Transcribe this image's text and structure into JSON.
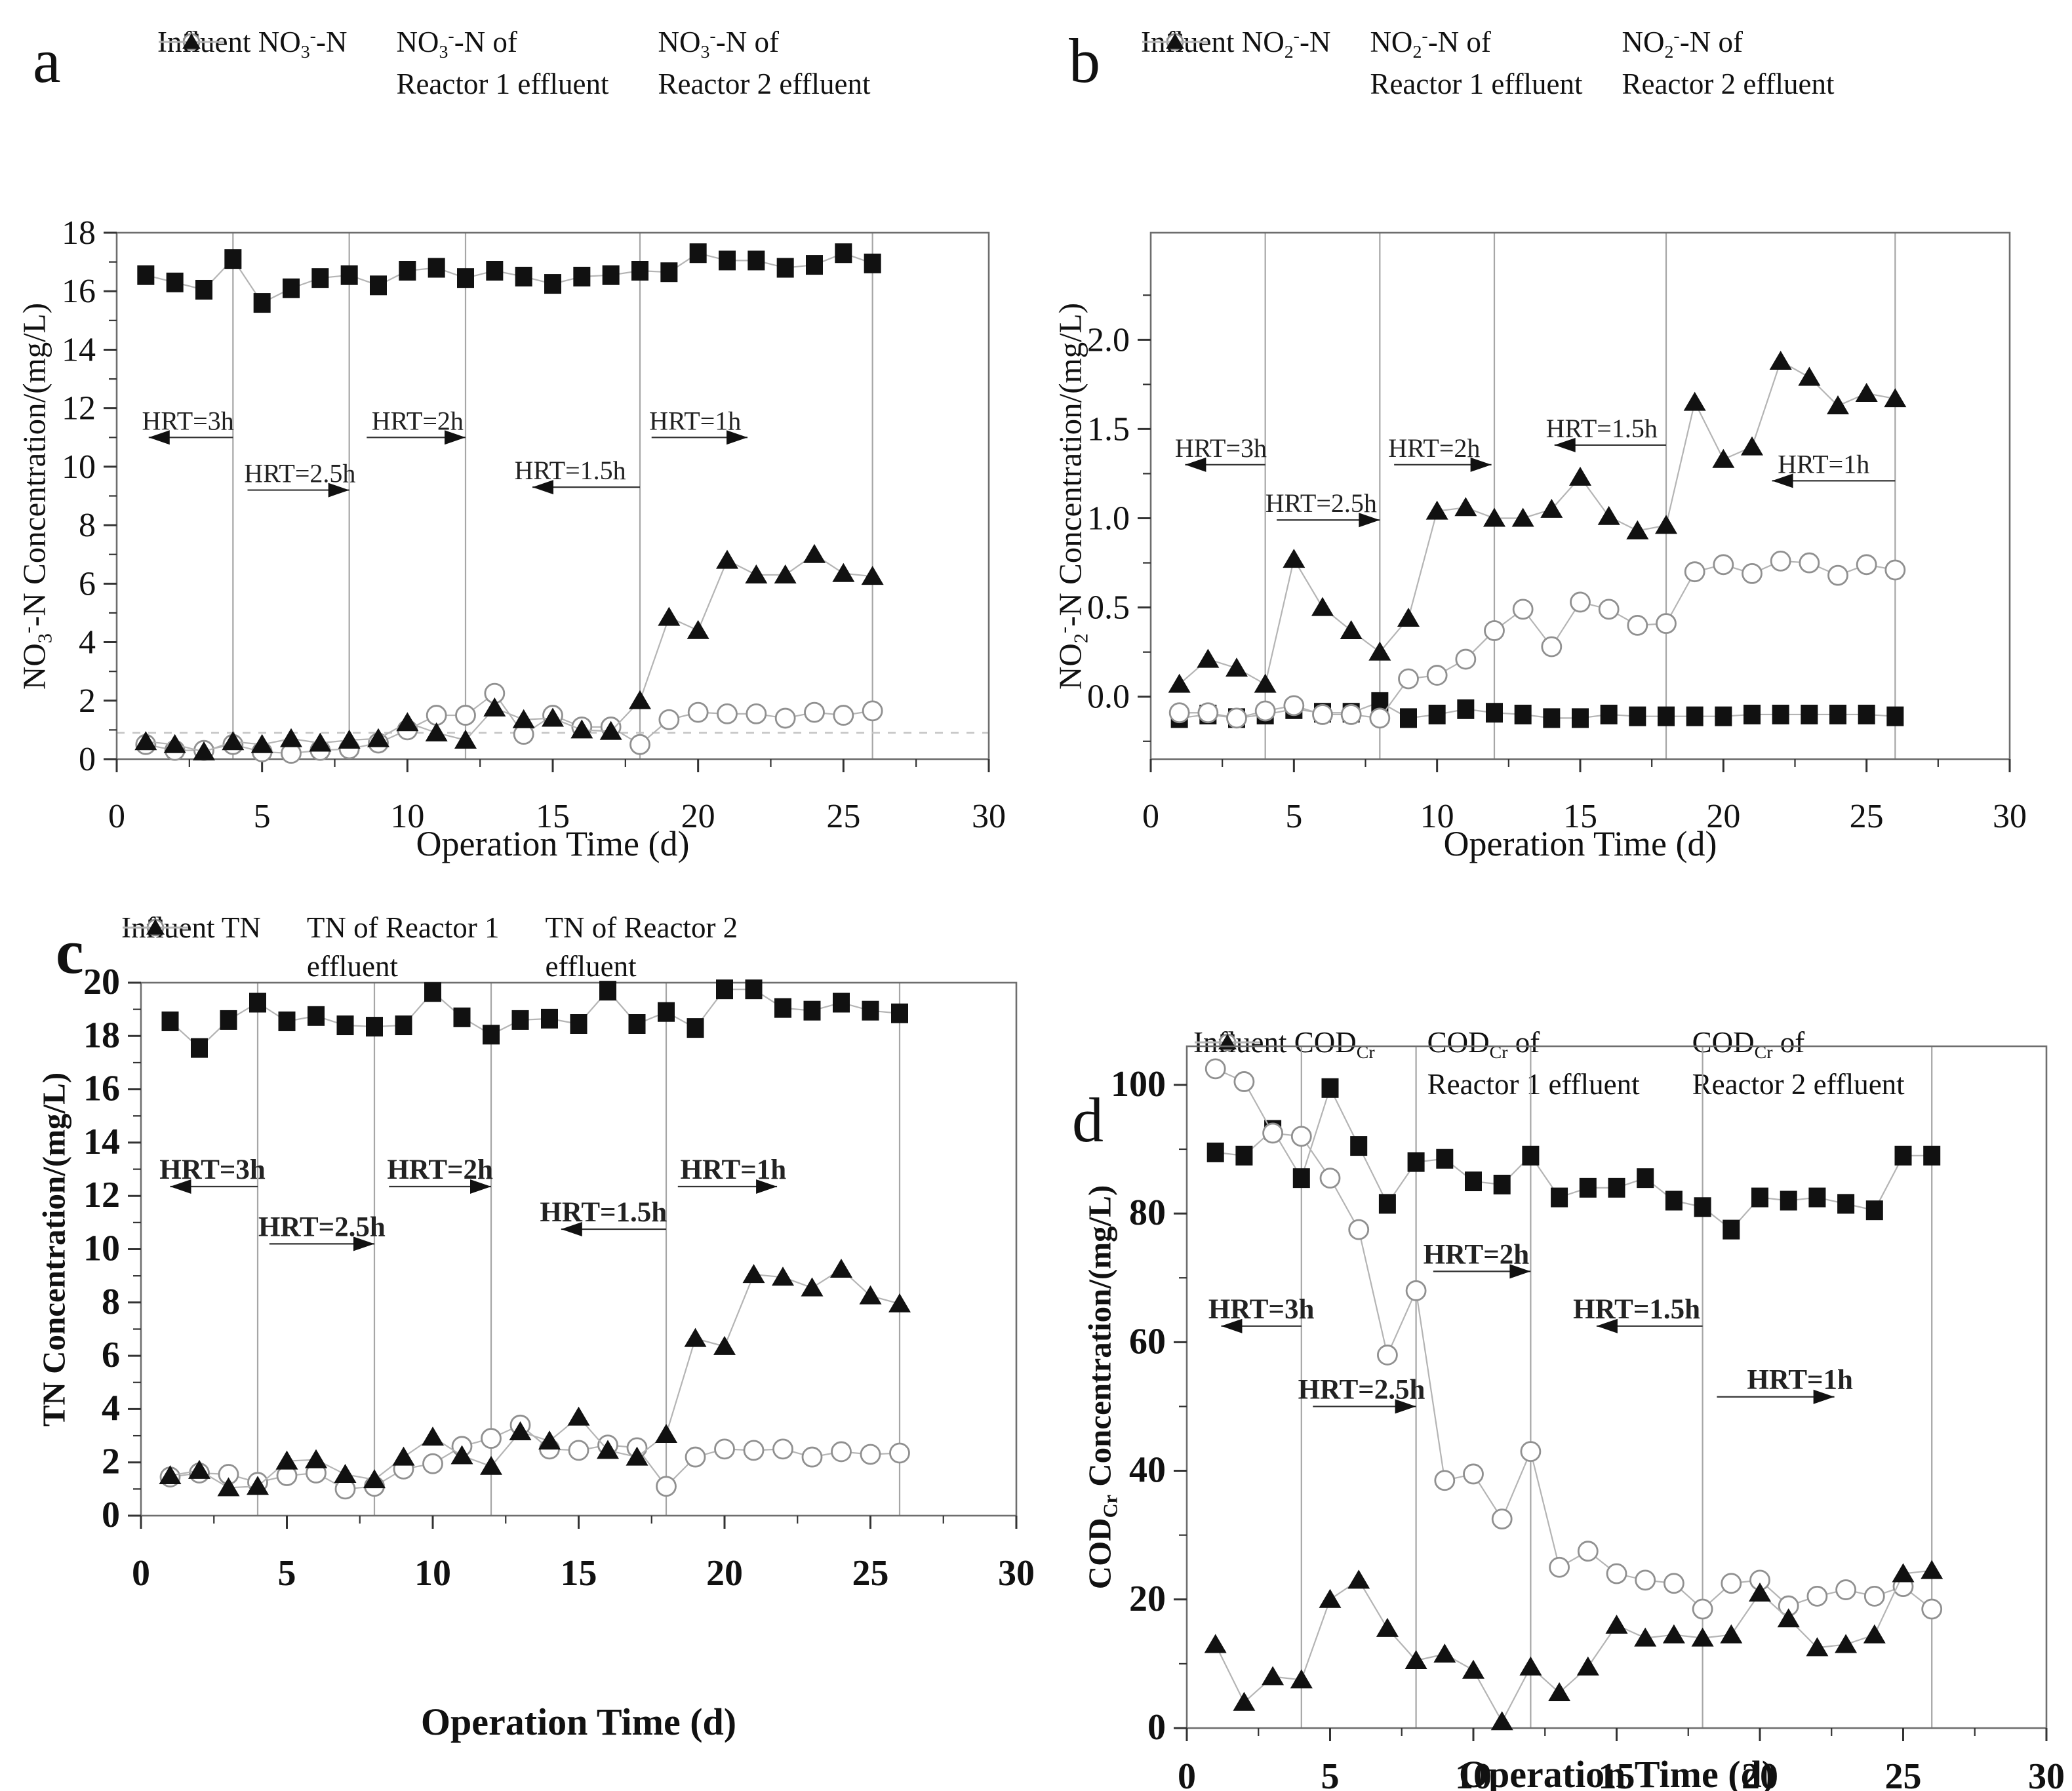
{
  "figure": {
    "background": "#ffffff",
    "series_markers": {
      "influent": "filled-square",
      "reactor1": "open-circle",
      "reactor2": "filled-triangle"
    }
  },
  "colors": {
    "marker_fill": "#111111",
    "circle_stroke": "#909090",
    "series_line": "#b4b4b4",
    "frame": "#6e6e6e",
    "divider": "#a6a6a6",
    "ref_dash": "#c4c4c4",
    "text": "#111111",
    "arrow": "#333333"
  },
  "days": [
    1,
    2,
    3,
    4,
    5,
    6,
    7,
    8,
    9,
    10,
    11,
    12,
    13,
    14,
    15,
    16,
    17,
    18,
    19,
    20,
    21,
    22,
    23,
    24,
    25,
    26
  ],
  "chart_data": [
    {
      "panel": "a",
      "type": "line",
      "ylabel": "NO_3_^-^-N  Concentration/(mg/L)",
      "xlabel": "Operation Time (d)",
      "xlim": [
        0,
        30
      ],
      "ylim": [
        0,
        18
      ],
      "xtick_vals": [
        0,
        5,
        10,
        15,
        20,
        25,
        30
      ],
      "xtick_labels": [
        "0",
        "5",
        "10",
        "15",
        "20",
        "25",
        "30"
      ],
      "xminor": [
        2.5,
        7.5,
        12.5,
        17.5,
        22.5,
        27.5
      ],
      "ytick_vals": [
        0,
        2,
        4,
        6,
        8,
        10,
        12,
        14,
        16,
        18
      ],
      "ytick_labels": [
        "0",
        "2",
        "4",
        "6",
        "8",
        "10",
        "12",
        "14",
        "16",
        "18"
      ],
      "yminor": [
        1,
        3,
        5,
        7,
        9,
        11,
        13,
        15,
        17
      ],
      "dividers": [
        4,
        8,
        12,
        18,
        26
      ],
      "ref_line_y": 0.9,
      "annotations": [
        {
          "label": "HRT=3h",
          "y": 11.0,
          "x1": 4,
          "x2": 1.1,
          "tx": 2.45
        },
        {
          "label": "HRT=2.5h",
          "y": 9.2,
          "x1": 4.5,
          "x2": 8,
          "tx": 6.3
        },
        {
          "label": "HRT=2h",
          "y": 11.0,
          "x1": 8.6,
          "x2": 12,
          "tx": 10.35
        },
        {
          "label": "HRT=1.5h",
          "y": 9.3,
          "x1": 18,
          "x2": 14.3,
          "tx": 15.6
        },
        {
          "label": "HRT=1h",
          "y": 11.0,
          "x1": 18.4,
          "x2": 21.7,
          "tx": 19.9
        }
      ],
      "legend": [
        {
          "marker": "filled-square",
          "label": "Influent  NO_3_^-^-N"
        },
        {
          "marker": "open-circle",
          "label": "NO_3_^-^-N of",
          "label2": "Reactor 1 effluent"
        },
        {
          "marker": "filled-triangle",
          "label": "NO_3_^-^-N of",
          "label2": "Reactor 2 effluent"
        }
      ],
      "series": [
        {
          "name": "Influent NO3--N",
          "marker": "filled-square",
          "values": [
            16.55,
            16.3,
            16.05,
            17.1,
            15.6,
            16.1,
            16.45,
            16.55,
            16.2,
            16.7,
            16.8,
            16.45,
            16.7,
            16.5,
            16.25,
            16.5,
            16.55,
            16.7,
            16.65,
            17.3,
            17.05,
            17.05,
            16.8,
            16.9,
            17.3,
            16.95
          ]
        },
        {
          "name": "NO3--N of Reactor 1 effluent",
          "marker": "open-circle",
          "values": [
            0.5,
            0.3,
            0.3,
            0.5,
            0.25,
            0.2,
            0.3,
            0.35,
            0.55,
            1.0,
            1.5,
            1.5,
            2.25,
            0.85,
            1.5,
            1.1,
            1.1,
            0.5,
            1.35,
            1.6,
            1.55,
            1.55,
            1.4,
            1.6,
            1.5,
            1.65
          ]
        },
        {
          "name": "NO3--N of Reactor 2 effluent",
          "marker": "filled-triangle",
          "values": [
            0.6,
            0.5,
            0.25,
            0.6,
            0.5,
            0.7,
            0.55,
            0.65,
            0.7,
            1.25,
            0.9,
            0.65,
            1.75,
            1.35,
            1.4,
            1.0,
            0.95,
            2.0,
            4.85,
            4.4,
            6.8,
            6.3,
            6.3,
            7.0,
            6.35,
            6.25
          ]
        }
      ]
    },
    {
      "panel": "b",
      "type": "line",
      "ylabel": "NO_2_^-^-N  Concentration/(mg/L)",
      "xlabel": "Operation Time (d)",
      "xlim": [
        0,
        30
      ],
      "ylim": [
        -0.35,
        2.6
      ],
      "xtick_vals": [
        0,
        5,
        10,
        15,
        20,
        25,
        30
      ],
      "xtick_labels": [
        "0",
        "5",
        "10",
        "15",
        "20",
        "25",
        "30"
      ],
      "xminor": [
        2.5,
        7.5,
        12.5,
        17.5,
        22.5,
        27.5
      ],
      "ytick_vals": [
        0,
        0.5,
        1.0,
        1.5,
        2.0
      ],
      "ytick_labels": [
        "0.0",
        "0.5",
        "1.0",
        "1.5",
        "2.0"
      ],
      "yminor": [
        -0.25,
        0.25,
        0.75,
        1.25,
        1.75,
        2.25
      ],
      "dividers": [
        4,
        8,
        12,
        18,
        26
      ],
      "annotations": [
        {
          "label": "HRT=3h",
          "y": 1.3,
          "x1": 4,
          "x2": 1.2,
          "tx": 2.45
        },
        {
          "label": "HRT=2.5h",
          "y": 0.99,
          "x1": 4.4,
          "x2": 8,
          "tx": 5.95
        },
        {
          "label": "HRT=2h",
          "y": 1.3,
          "x1": 8.5,
          "x2": 11.9,
          "tx": 9.9
        },
        {
          "label": "HRT=1.5h",
          "y": 1.41,
          "x1": 18,
          "x2": 14.1,
          "tx": 15.75
        },
        {
          "label": "HRT=1h",
          "y": 1.21,
          "x1": 26,
          "x2": 21.7,
          "tx": 23.5
        }
      ],
      "legend": [
        {
          "marker": "filled-square",
          "label": "Influent  NO_2_^-^-N"
        },
        {
          "marker": "open-circle",
          "label": "NO_2_^-^-N of",
          "label2": "Reactor 1 effluent"
        },
        {
          "marker": "filled-triangle",
          "label": "NO_2_^-^-N of",
          "label2": "Reactor 2 effluent"
        }
      ],
      "series": [
        {
          "name": "Influent NO2--N",
          "marker": "filled-square",
          "values": [
            -0.12,
            -0.1,
            -0.12,
            -0.1,
            -0.07,
            -0.09,
            -0.09,
            -0.03,
            -0.12,
            -0.1,
            -0.07,
            -0.09,
            -0.1,
            -0.12,
            -0.12,
            -0.1,
            -0.11,
            -0.11,
            -0.11,
            -0.11,
            -0.1,
            -0.1,
            -0.1,
            -0.1,
            -0.1,
            -0.11
          ]
        },
        {
          "name": "NO2--N of Reactor 1 effluent",
          "marker": "open-circle",
          "values": [
            -0.09,
            -0.09,
            -0.12,
            -0.08,
            -0.05,
            -0.1,
            -0.1,
            -0.12,
            0.1,
            0.12,
            0.21,
            0.37,
            0.49,
            0.28,
            0.53,
            0.49,
            0.4,
            0.41,
            0.7,
            0.74,
            0.69,
            0.76,
            0.75,
            0.68,
            0.74,
            0.71
          ]
        },
        {
          "name": "NO2--N of Reactor 2 effluent",
          "marker": "filled-triangle",
          "values": [
            0.07,
            0.21,
            0.16,
            0.07,
            0.77,
            0.5,
            0.37,
            0.25,
            0.44,
            1.04,
            1.06,
            1.0,
            1.0,
            1.05,
            1.23,
            1.01,
            0.93,
            0.96,
            1.65,
            1.33,
            1.4,
            1.88,
            1.79,
            1.63,
            1.7,
            1.67
          ]
        }
      ]
    },
    {
      "panel": "c",
      "type": "line",
      "ylabel": "TN  Concentration/(mg/L)",
      "xlabel": "Operation Time (d)",
      "xlim": [
        0,
        30
      ],
      "ylim": [
        0,
        20
      ],
      "xtick_vals": [
        0,
        5,
        10,
        15,
        20,
        25,
        30
      ],
      "xtick_labels": [
        "0",
        "5",
        "10",
        "15",
        "20",
        "25",
        "30"
      ],
      "xminor": [
        2.5,
        7.5,
        12.5,
        17.5,
        22.5,
        27.5
      ],
      "ytick_vals": [
        0,
        2,
        4,
        6,
        8,
        10,
        12,
        14,
        16,
        18,
        20
      ],
      "ytick_labels": [
        "0",
        "2",
        "4",
        "6",
        "8",
        "10",
        "12",
        "14",
        "16",
        "18",
        "20"
      ],
      "yminor": [
        1,
        3,
        5,
        7,
        9,
        11,
        13,
        15,
        17,
        19
      ],
      "dividers": [
        4,
        8,
        12,
        18,
        26
      ],
      "annotations": [
        {
          "label": "HRT=3h",
          "y": 12.35,
          "x1": 4,
          "x2": 1.0,
          "tx": 2.45
        },
        {
          "label": "HRT=2.5h",
          "y": 10.2,
          "x1": 4.4,
          "x2": 8,
          "tx": 6.2
        },
        {
          "label": "HRT=2h",
          "y": 12.35,
          "x1": 8.5,
          "x2": 12,
          "tx": 10.25
        },
        {
          "label": "HRT=1.5h",
          "y": 10.75,
          "x1": 18,
          "x2": 14.4,
          "tx": 15.85
        },
        {
          "label": "HRT=1h",
          "y": 12.35,
          "x1": 18.4,
          "x2": 21.8,
          "tx": 20.3
        }
      ],
      "legend": [
        {
          "marker": "filled-square",
          "label": "Influent  TN"
        },
        {
          "marker": "open-circle",
          "label": "TN of Reactor 1",
          "label2": "effluent"
        },
        {
          "marker": "filled-triangle",
          "label": "TN of Reactor 2",
          "label2": "effluent"
        }
      ],
      "series": [
        {
          "name": "Influent TN",
          "marker": "filled-square",
          "values": [
            18.55,
            17.55,
            18.6,
            19.25,
            18.55,
            18.75,
            18.4,
            18.35,
            18.4,
            19.65,
            18.7,
            18.05,
            18.6,
            18.65,
            18.45,
            19.7,
            18.45,
            18.9,
            18.3,
            19.75,
            19.75,
            19.05,
            18.95,
            19.25,
            18.95,
            18.85
          ]
        },
        {
          "name": "TN of Reactor 1 effluent",
          "marker": "open-circle",
          "values": [
            1.45,
            1.6,
            1.55,
            1.25,
            1.5,
            1.6,
            1.0,
            1.1,
            1.75,
            1.95,
            2.6,
            2.9,
            3.4,
            2.5,
            2.45,
            2.65,
            2.55,
            1.1,
            2.2,
            2.5,
            2.45,
            2.5,
            2.2,
            2.4,
            2.3,
            2.35
          ]
        },
        {
          "name": "TN of Reactor 2 effluent",
          "marker": "filled-triangle",
          "values": [
            1.5,
            1.7,
            1.05,
            1.1,
            2.05,
            2.1,
            1.55,
            1.35,
            2.2,
            2.95,
            2.25,
            1.85,
            3.15,
            2.8,
            3.7,
            2.45,
            2.2,
            3.05,
            6.65,
            6.35,
            9.05,
            8.95,
            8.55,
            9.25,
            8.25,
            7.95
          ]
        }
      ]
    },
    {
      "panel": "d",
      "type": "line",
      "ylabel": "COD_Cr_ Concentration/(mg/L)",
      "xlabel": "Operation Time  (d)",
      "xlim": [
        0,
        30
      ],
      "ylim": [
        0,
        106
      ],
      "xtick_vals": [
        0,
        5,
        10,
        15,
        20,
        25,
        30
      ],
      "xtick_labels": [
        "0",
        "5",
        "10",
        "15",
        "20",
        "25",
        "30"
      ],
      "xminor": [
        2.5,
        7.5,
        12.5,
        17.5,
        22.5,
        27.5
      ],
      "ytick_vals": [
        0,
        20,
        40,
        60,
        80,
        100
      ],
      "ytick_labels": [
        "0",
        "20",
        "40",
        "60",
        "80",
        "100"
      ],
      "yminor": [
        10,
        30,
        50,
        70,
        90
      ],
      "dividers": [
        4,
        8,
        12,
        18,
        26
      ],
      "annotations": [
        {
          "label": "HRT=3h",
          "y": 62.5,
          "x1": 4,
          "x2": 1.2,
          "tx": 2.6
        },
        {
          "label": "HRT=2.5h",
          "y": 50,
          "x1": 4.4,
          "x2": 8,
          "tx": 6.1
        },
        {
          "label": "HRT=2h",
          "y": 71,
          "x1": 8.6,
          "x2": 12,
          "tx": 10.1
        },
        {
          "label": "HRT=1.5h",
          "y": 62.5,
          "x1": 18,
          "x2": 14.3,
          "tx": 15.7
        },
        {
          "label": "HRT=1h",
          "y": 51.5,
          "x1": 18.5,
          "x2": 22.6,
          "tx": 21.4
        }
      ],
      "legend": [
        {
          "marker": "filled-square",
          "label": "Influent  COD_Cr_"
        },
        {
          "marker": "open-circle",
          "label": "COD_Cr_ of",
          "label2": "Reactor 1 effluent"
        },
        {
          "marker": "filled-triangle",
          "label": "COD_Cr_ of",
          "label2": "Reactor 2 effluent"
        }
      ],
      "series": [
        {
          "name": "Influent CODCr",
          "marker": "filled-square",
          "values": [
            89.5,
            89,
            93,
            85.5,
            99.5,
            90.5,
            81.5,
            88,
            88.5,
            85,
            84.5,
            89,
            82.5,
            84,
            84,
            85.5,
            82,
            81,
            77.5,
            82.5,
            82,
            82.5,
            81.5,
            80.5,
            89,
            89
          ]
        },
        {
          "name": "CODCr of Reactor 1 effluent",
          "marker": "open-circle",
          "values": [
            102.5,
            100.5,
            92.5,
            92,
            85.5,
            77.5,
            58,
            68,
            38.5,
            39.5,
            32.5,
            43,
            25,
            27.5,
            24,
            23,
            22.5,
            18.5,
            22.5,
            23,
            19,
            20.5,
            21.5,
            20.5,
            22,
            18.5
          ]
        },
        {
          "name": "CODCr of Reactor 2 effluent",
          "marker": "filled-triangle",
          "values": [
            13,
            4,
            8,
            7.5,
            20,
            23,
            15.5,
            10.5,
            11.5,
            9,
            1,
            9.5,
            5.5,
            9.5,
            16,
            14,
            14.5,
            14,
            14.5,
            21,
            17,
            12.5,
            13,
            14.5,
            24,
            24.5
          ]
        }
      ]
    }
  ]
}
